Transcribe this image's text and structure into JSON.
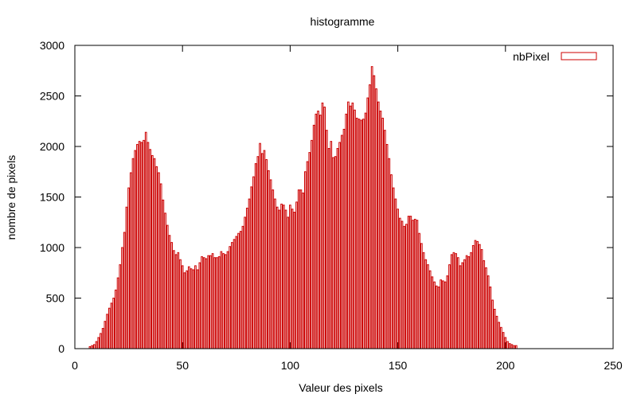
{
  "chart_data": {
    "type": "bar",
    "title": "histogramme",
    "xlabel": "Valeur des pixels",
    "ylabel": "nombre de pixels",
    "xlim": [
      0,
      250
    ],
    "ylim": [
      0,
      3000
    ],
    "xticks": [
      0,
      50,
      100,
      150,
      200,
      250
    ],
    "yticks": [
      0,
      500,
      1000,
      1500,
      2000,
      2500,
      3000
    ],
    "xtick_labels": [
      "0",
      "50",
      "100",
      "150",
      "200",
      "250"
    ],
    "ytick_labels": [
      "0",
      "500",
      "1000",
      "1500",
      "2000",
      "2500",
      "3000"
    ],
    "legend_position": "top-right",
    "series": [
      {
        "name": "nbPixel",
        "color": "#cc0000",
        "x_start": 0,
        "values": [
          0,
          0,
          0,
          0,
          0,
          0,
          0,
          20,
          30,
          40,
          70,
          110,
          150,
          200,
          270,
          340,
          400,
          450,
          500,
          580,
          700,
          830,
          1000,
          1150,
          1400,
          1590,
          1740,
          1880,
          1960,
          2020,
          2050,
          2040,
          2060,
          2140,
          2040,
          1970,
          1910,
          1880,
          1800,
          1740,
          1630,
          1470,
          1340,
          1220,
          1120,
          1050,
          970,
          930,
          950,
          880,
          820,
          750,
          770,
          810,
          790,
          780,
          820,
          780,
          850,
          910,
          900,
          890,
          920,
          920,
          940,
          900,
          900,
          910,
          960,
          940,
          930,
          960,
          1010,
          1050,
          1080,
          1110,
          1140,
          1160,
          1210,
          1300,
          1390,
          1480,
          1600,
          1700,
          1830,
          1900,
          2030,
          1930,
          1960,
          1870,
          1760,
          1670,
          1570,
          1480,
          1400,
          1370,
          1430,
          1420,
          1370,
          1300,
          1420,
          1380,
          1350,
          1450,
          1570,
          1570,
          1540,
          1750,
          1850,
          1940,
          2060,
          2210,
          2320,
          2350,
          2310,
          2430,
          2390,
          2160,
          1980,
          2050,
          1890,
          1900,
          1980,
          2040,
          2110,
          2170,
          2320,
          2440,
          2400,
          2430,
          2360,
          2280,
          2270,
          2260,
          2270,
          2330,
          2480,
          2610,
          2790,
          2700,
          2570,
          2440,
          2350,
          2280,
          2160,
          2020,
          1880,
          1720,
          1590,
          1480,
          1380,
          1290,
          1260,
          1210,
          1230,
          1310,
          1310,
          1270,
          1280,
          1270,
          1140,
          1040,
          950,
          880,
          830,
          770,
          710,
          660,
          620,
          610,
          680,
          670,
          660,
          720,
          830,
          930,
          950,
          940,
          900,
          820,
          850,
          880,
          920,
          910,
          950,
          1020,
          1070,
          1060,
          1030,
          980,
          870,
          800,
          720,
          610,
          480,
          390,
          320,
          260,
          210,
          160,
          110,
          70,
          50,
          40,
          30,
          30
        ]
      }
    ]
  }
}
